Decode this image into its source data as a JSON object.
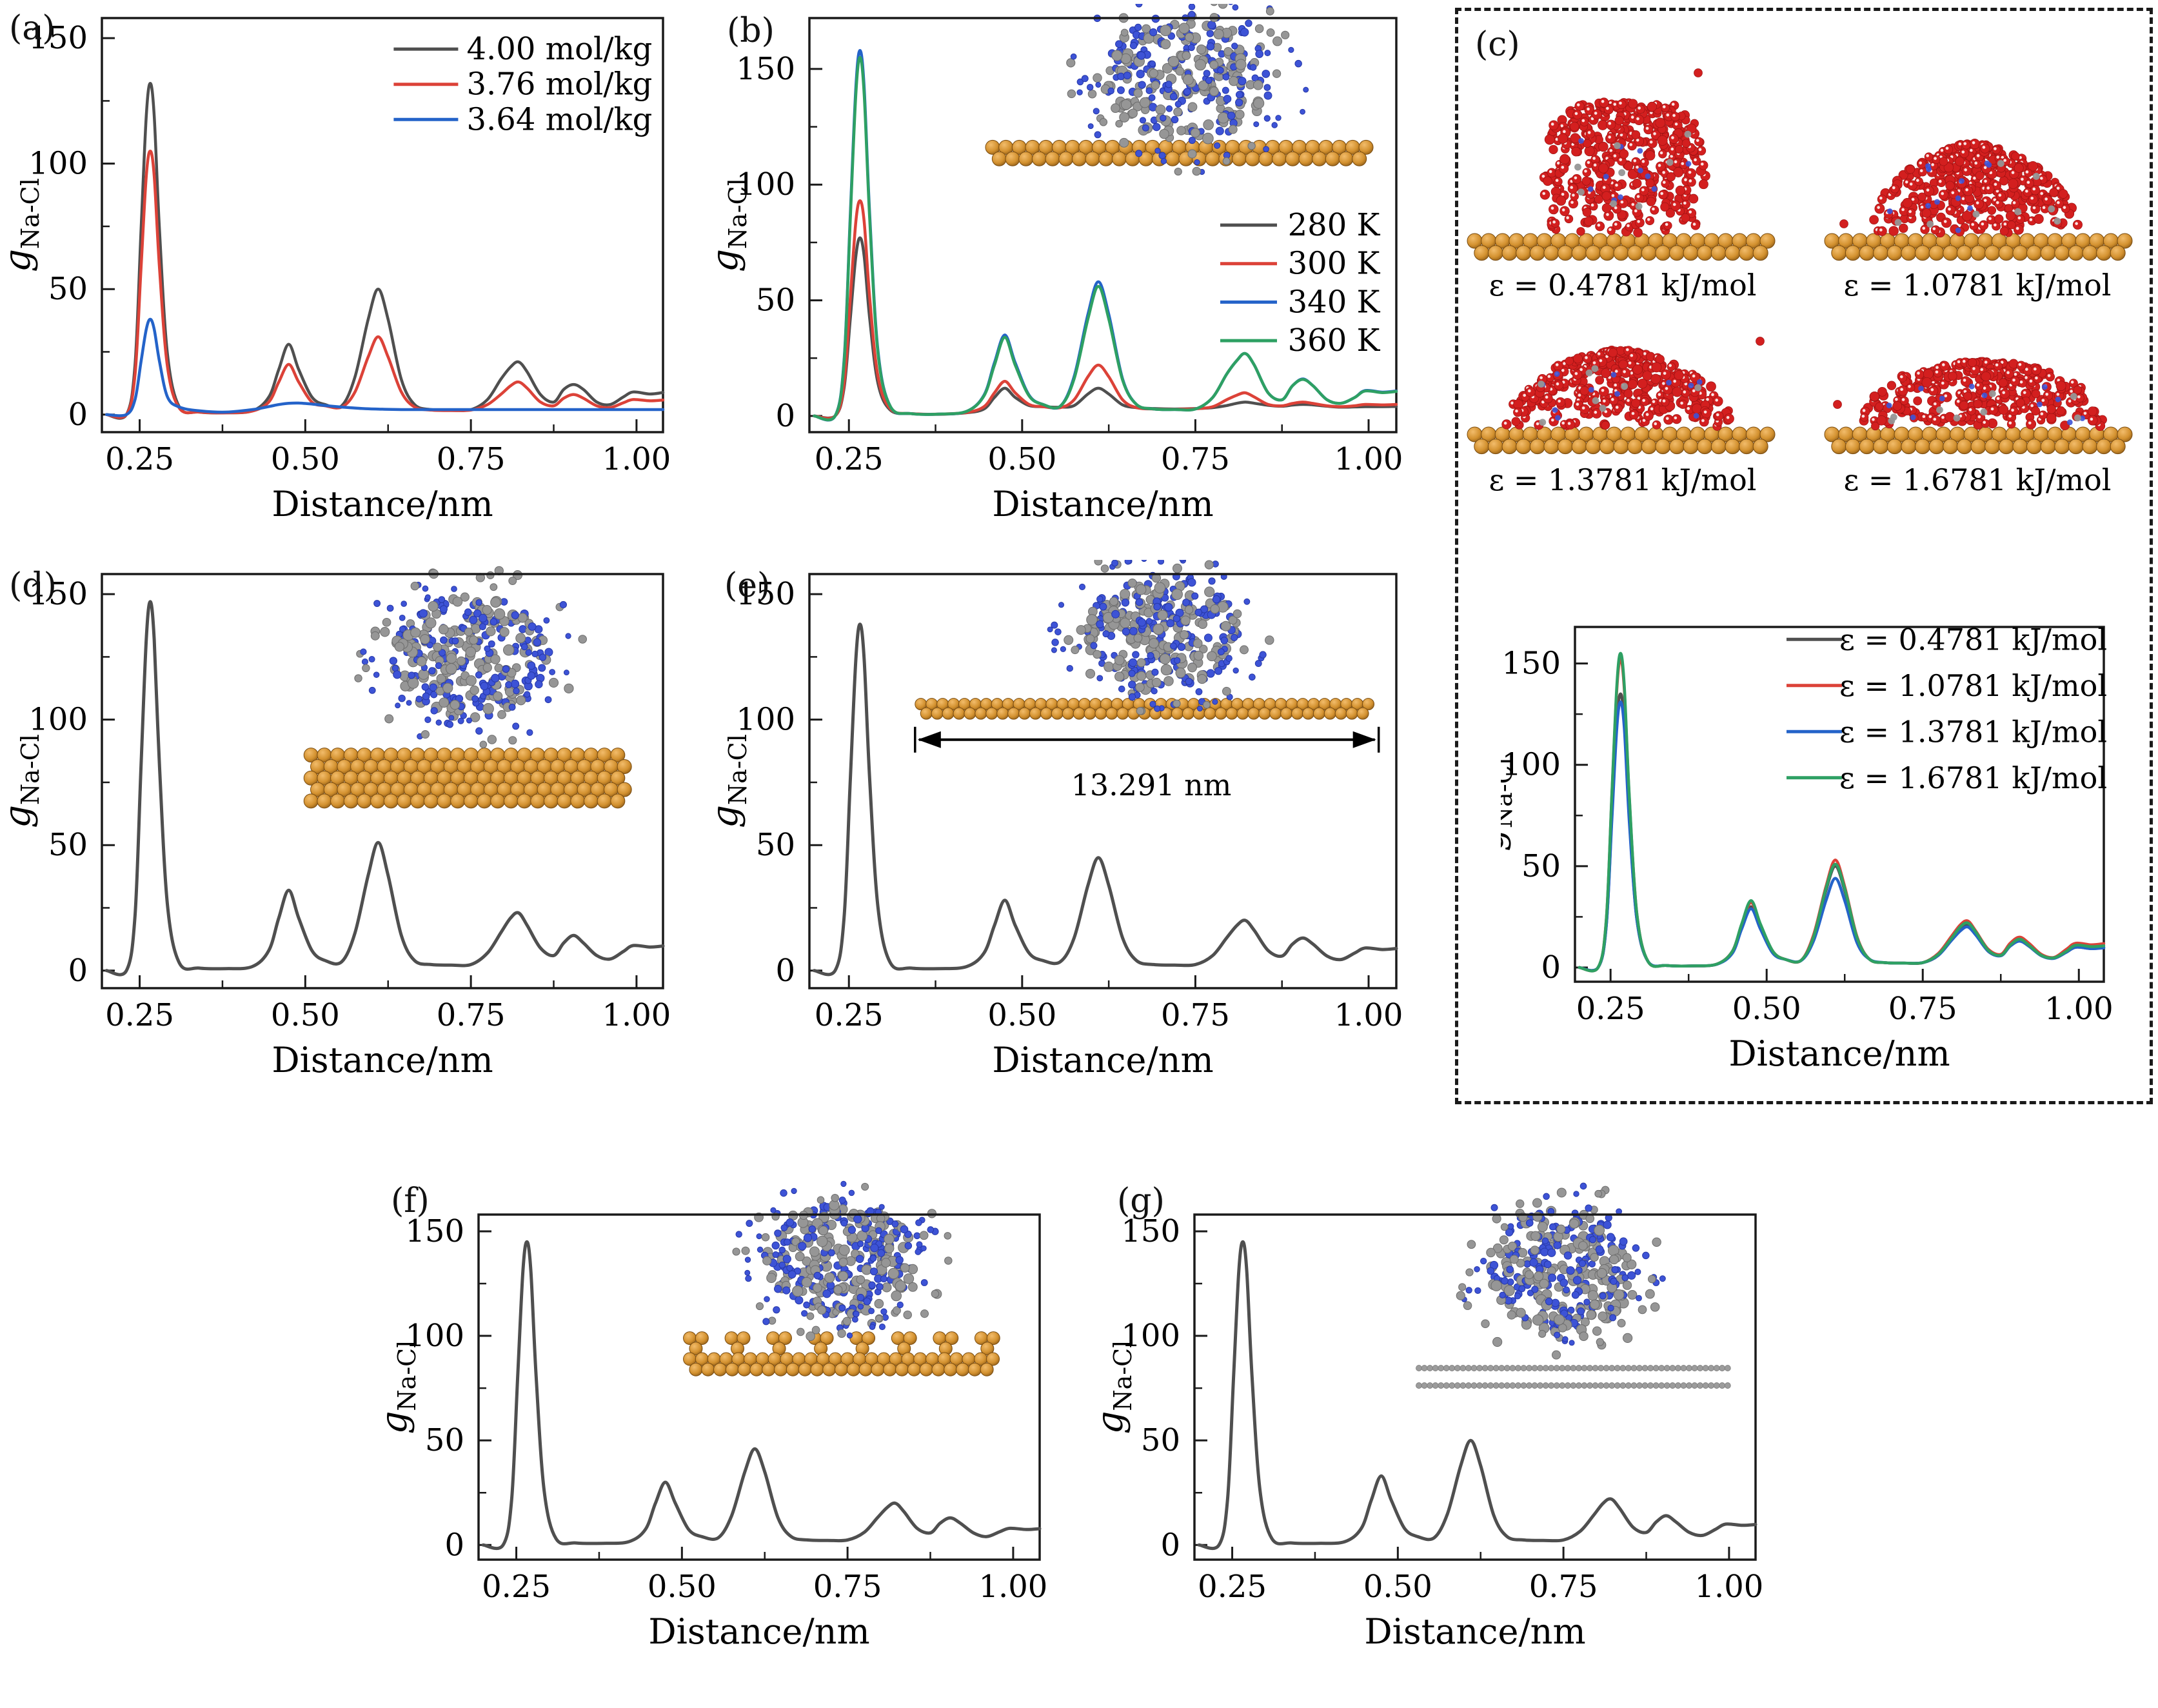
{
  "panels": {
    "a": {
      "letter": "(a)"
    },
    "b": {
      "letter": "(b)"
    },
    "c": {
      "letter": "(c)",
      "snapshots": [
        {
          "caption": "ε = 0.4781 kJ/mol"
        },
        {
          "caption": "ε = 1.0781 kJ/mol"
        },
        {
          "caption": "ε = 1.3781 kJ/mol"
        },
        {
          "caption": "ε = 1.6781 kJ/mol"
        }
      ]
    },
    "d": {
      "letter": "(d)"
    },
    "e": {
      "letter": "(e)",
      "inset_length_label": "13.291 nm"
    },
    "f": {
      "letter": "(f)"
    },
    "g": {
      "letter": "(g)"
    }
  },
  "axis": {
    "xlabel": "Distance/nm",
    "ylabel_main": "g",
    "ylabel_sub": "Na-Cl",
    "xlim": [
      0.193,
      1.04
    ],
    "xticks": [
      0.25,
      0.5,
      0.75,
      1.0
    ],
    "xtick_labels": [
      "0.25",
      "0.50",
      "0.75",
      "1.00"
    ],
    "xtick_minor": [
      0.375,
      0.625,
      0.875
    ],
    "yticks": [
      0,
      50,
      100,
      150
    ],
    "ytick_labels": [
      "0",
      "50",
      "100",
      "150"
    ],
    "ytick_minor": [
      25,
      75,
      125
    ]
  },
  "colors": {
    "black": "#4f4f4f",
    "red": "#dc4238",
    "blue": "#2463c9",
    "green": "#2ea063",
    "frame": "#1a1a1a",
    "gold": "#d3912f",
    "gold_hi": "#f2bc6b",
    "gold_dark": "#7a4c10",
    "atom_gray": "#969696",
    "atom_gray_stroke": "#6d6d6d",
    "atom_blue": "#3d53d6",
    "atom_blue_stroke": "#2638a8",
    "water_red": "#d31f1f",
    "water_red_stroke": "#9c1212",
    "sheet_gray": "#9c9c9c"
  },
  "chart_data": {
    "type": "line",
    "xlabel": "Distance/nm",
    "ylabel": "g_Na-Cl",
    "shared_x_nm": [
      0.2,
      0.23,
      0.243,
      0.252,
      0.26,
      0.266,
      0.272,
      0.28,
      0.292,
      0.31,
      0.34,
      0.38,
      0.42,
      0.445,
      0.46,
      0.475,
      0.49,
      0.51,
      0.53,
      0.555,
      0.575,
      0.595,
      0.61,
      0.625,
      0.645,
      0.665,
      0.69,
      0.72,
      0.75,
      0.775,
      0.795,
      0.81,
      0.822,
      0.835,
      0.855,
      0.875,
      0.89,
      0.905,
      0.92,
      0.94,
      0.96,
      0.98,
      0.995,
      1.02,
      1.04
    ],
    "charts": [
      {
        "id": "a",
        "ylim": [
          -7,
          158
        ],
        "legend_position": "top-right",
        "series": [
          {
            "name": "4.00 mol/kg",
            "color_key": "black",
            "values": [
              0,
              0,
              20,
              73,
              119,
              132,
              119,
              73,
              24,
              3,
              1,
              0.7,
              1.5,
              7,
              18,
              28,
              18,
              7,
              4,
              3.5,
              15,
              38,
              50,
              38,
              14,
              4,
              2,
              1.8,
              2,
              6,
              14,
              19,
              21,
              17,
              8,
              5,
              10,
              12,
              10,
              5,
              4,
              7,
              9,
              8.2,
              8.8
            ]
          },
          {
            "name": "3.76 mol/kg",
            "color_key": "red",
            "values": [
              0,
              0,
              16,
              58,
              95,
              105,
              95,
              58,
              19,
              2.5,
              1,
              0.7,
              1.4,
              5,
              13,
              20,
              13,
              5,
              3.5,
              3,
              9,
              23,
              31,
              23,
              9,
              3,
              1.8,
              1.6,
              1.8,
              4,
              8,
              11.5,
              13,
              10.5,
              5,
              3.5,
              6.5,
              8,
              6.5,
              3.5,
              2.8,
              4.7,
              6,
              5.5,
              5.8
            ]
          },
          {
            "name": "3.64 mol/kg",
            "color_key": "blue",
            "values": [
              0,
              0,
              6,
              21,
              34,
              38,
              34,
              21,
              7,
              3,
              1.5,
              1,
              2,
              3.2,
              4,
              4.5,
              4.6,
              4.2,
              3.6,
              3,
              2.6,
              2.3,
              2.2,
              2.1,
              2,
              2,
              2,
              2,
              2,
              2,
              2,
              2,
              2,
              2,
              2,
              2,
              2,
              2,
              2,
              2,
              2,
              2,
              2,
              2,
              2
            ]
          }
        ]
      },
      {
        "id": "b",
        "ylim": [
          -7,
          172
        ],
        "legend_position": "mid-right",
        "series": [
          {
            "name": "280 K",
            "color_key": "black",
            "values": [
              0,
              0,
              12,
              42,
              69,
              77,
              69,
              42,
              14,
              2.5,
              1,
              0.7,
              1.4,
              3,
              8,
              12,
              8,
              4.5,
              4,
              3.8,
              4.5,
              9.5,
              12,
              9.5,
              4.8,
              3.6,
              3.2,
              3,
              3.2,
              3.6,
              4.5,
              5.5,
              6,
              5.5,
              4.6,
              4.2,
              4.7,
              5,
              4.8,
              4.2,
              3.8,
              3.9,
              4,
              4,
              4.1
            ]
          },
          {
            "name": "300 K",
            "color_key": "red",
            "values": [
              0,
              0,
              14,
              51,
              84,
              93,
              84,
              51,
              17,
              3,
              1,
              0.8,
              1.5,
              4,
              10,
              15,
              10,
              5,
              4,
              3.6,
              7,
              17,
              22,
              17,
              7,
              3.6,
              3,
              2.9,
              3.1,
              4,
              7,
              9,
              10,
              8.2,
              5,
              4.4,
              5.4,
              6,
              5.4,
              4.4,
              4,
              4.4,
              5,
              4.8,
              5
            ]
          },
          {
            "name": "340 K",
            "color_key": "blue",
            "values": [
              0,
              0,
              24,
              87,
              142,
              158,
              142,
              87,
              28,
              4,
              1,
              0.8,
              2,
              9,
              23,
              35,
              23,
              9,
              5,
              4.2,
              17,
              44,
              58,
              44,
              16,
              5,
              3,
              2.8,
              3,
              8,
              18,
              24,
              27,
              22,
              10,
              7,
              13,
              16,
              13,
              7,
              5.5,
              8,
              11,
              10.3,
              10.8
            ]
          },
          {
            "name": "360 K",
            "color_key": "green",
            "values": [
              0,
              0,
              23,
              85,
              139,
              155,
              139,
              85,
              27,
              4,
              1,
              0.8,
              2,
              8.7,
              22,
              34,
              22,
              8.7,
              5,
              4.2,
              16,
              42,
              56,
              42,
              15.5,
              5,
              3,
              2.8,
              3,
              8,
              18,
              24,
              27,
              22,
              10,
              7,
              13,
              15.8,
              13,
              7,
              5.5,
              8,
              10.8,
              10.1,
              10.6
            ]
          }
        ]
      },
      {
        "id": "c",
        "ylim": [
          -7,
          168
        ],
        "legend_position": "top-right",
        "series": [
          {
            "name": "ε = 0.4781 kJ/mol",
            "color_key": "black",
            "values": [
              0,
              0,
              20,
              74,
              121,
              135,
              121,
              74,
              24,
              3,
              1,
              0.8,
              1.6,
              7.5,
              19.5,
              30,
              19.5,
              7.5,
              4,
              3.5,
              15,
              38,
              50,
              38,
              14,
              4,
              2.4,
              2.2,
              2.4,
              6,
              14,
              19,
              21,
              17,
              8,
              6,
              11,
              14,
              11,
              6,
              4.6,
              7.6,
              10,
              9.4,
              9.8
            ]
          },
          {
            "name": "ε = 1.0781 kJ/mol",
            "color_key": "red",
            "values": [
              0,
              0,
              23,
              84,
              137,
              152,
              137,
              84,
              27,
              3,
              1,
              0.8,
              1.7,
              8,
              21,
              32,
              21,
              8,
              4,
              3.5,
              16,
              40,
              53,
              40,
              15,
              4,
              2.4,
              2.2,
              2.4,
              7,
              15,
              21,
              23,
              18,
              9,
              6.5,
              12,
              15,
              12,
              6.5,
              5,
              9,
              12,
              11.2,
              11.8
            ]
          },
          {
            "name": "ε = 1.3781 kJ/mol",
            "color_key": "blue",
            "values": [
              0,
              0,
              20,
              72,
              118,
              131,
              118,
              72,
              24,
              3,
              1,
              0.8,
              1.6,
              7,
              19,
              29,
              19,
              7,
              4,
              3.4,
              13,
              33,
              44,
              33,
              12,
              4,
              2.4,
              2.2,
              2.4,
              6,
              13,
              18,
              20,
              16,
              8,
              5.8,
              10.5,
              13,
              10.5,
              5.8,
              4.5,
              7.5,
              10,
              9.3,
              9.7
            ]
          },
          {
            "name": "ε = 1.6781 kJ/mol",
            "color_key": "green",
            "values": [
              0,
              0,
              23,
              85,
              139,
              155,
              139,
              85,
              27,
              3,
              1,
              0.8,
              1.7,
              8,
              21.5,
              33,
              21.5,
              8,
              4,
              3.5,
              15,
              39,
              51,
              39,
              14.5,
              4,
              2.4,
              2.2,
              2.4,
              6.5,
              14,
              20,
              22,
              17.5,
              8.5,
              6,
              11,
              14,
              11,
              6,
              4.8,
              8,
              11,
              10.3,
              10.7
            ]
          }
        ]
      },
      {
        "id": "d",
        "ylim": [
          -7,
          158
        ],
        "legend_position": "none",
        "series": [
          {
            "name": "g Na-Cl",
            "color_key": "black",
            "values": [
              0,
              0,
              22,
              81,
              132,
              147,
              132,
              81,
              26,
              3,
              1,
              0.8,
              1.6,
              8,
              21,
              32,
              21,
              8,
              4,
              3.5,
              15,
              38,
              51,
              38,
              14,
              4,
              2.4,
              2.2,
              2.4,
              7,
              15,
              21,
              23,
              18,
              9,
              6,
              11,
              14,
              11,
              6,
              4.6,
              7.6,
              10,
              9.4,
              9.8
            ]
          }
        ]
      },
      {
        "id": "e",
        "ylim": [
          -7,
          158
        ],
        "legend_position": "none",
        "series": [
          {
            "name": "g Na-Cl",
            "color_key": "black",
            "values": [
              0,
              0,
              21,
              76,
              124,
              138,
              124,
              76,
              25,
              3,
              1,
              0.8,
              1.6,
              7,
              18,
              28,
              18,
              7,
              4,
              3.5,
              13,
              34,
              45,
              34,
              13,
              4,
              2.4,
              2.2,
              2.4,
              6,
              13,
              18,
              20,
              16,
              8,
              5.8,
              10.5,
              13,
              10.5,
              5.8,
              4.4,
              7,
              9,
              8.4,
              8.8
            ]
          }
        ]
      },
      {
        "id": "f",
        "ylim": [
          -7,
          158
        ],
        "legend_position": "none",
        "series": [
          {
            "name": "g Na-Cl",
            "color_key": "black",
            "values": [
              0,
              0,
              22,
              80,
              131,
              145,
              131,
              80,
              26,
              3,
              1,
              0.8,
              1.6,
              7.5,
              20,
              30,
              20,
              7.5,
              4,
              3.5,
              14,
              35,
              46,
              35,
              13,
              4,
              2.4,
              2.2,
              2.4,
              6,
              13,
              18,
              20,
              16,
              8,
              5.8,
              10.5,
              13,
              10.5,
              5.8,
              4,
              6.4,
              8,
              7.4,
              7.8
            ]
          }
        ]
      },
      {
        "id": "g",
        "ylim": [
          -7,
          158
        ],
        "legend_position": "none",
        "series": [
          {
            "name": "g Na-Cl",
            "color_key": "black",
            "values": [
              0,
              0,
              22,
              80,
              131,
              145,
              131,
              80,
              26,
              3,
              1,
              0.8,
              1.6,
              8,
              21.5,
              33,
              21.5,
              8,
              4,
              3.5,
              15,
              38,
              50,
              38,
              14,
              4,
              2.4,
              2.2,
              2.4,
              6.5,
              14,
              20,
              22,
              17.5,
              8.5,
              6,
              11,
              14,
              11,
              6,
              4.6,
              7.6,
              10,
              9.4,
              9.8
            ]
          }
        ]
      }
    ]
  }
}
